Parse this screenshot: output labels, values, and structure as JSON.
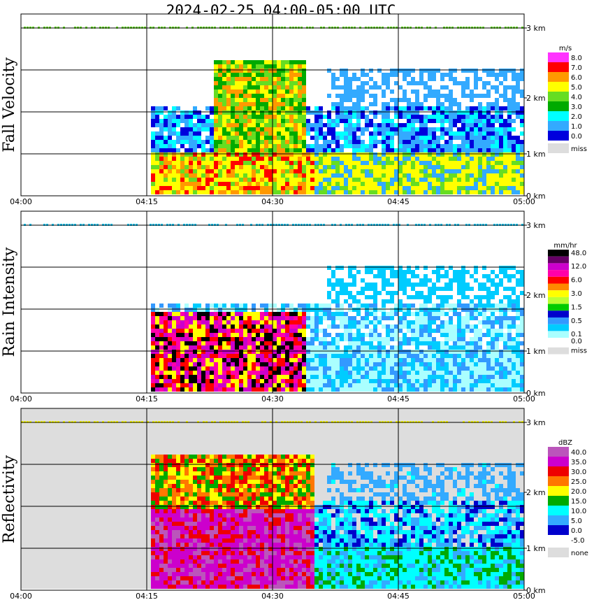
{
  "title": "2024-02-25   04:00-05:00 UTC",
  "chart_data": [
    {
      "type": "heatmap",
      "panel_label": "Fall Velocity",
      "x_ticks": [
        "04:00",
        "04:15",
        "04:30",
        "04:45",
        "05:00"
      ],
      "y_ticks": [
        "0 km",
        "1 km",
        "2 km",
        "3 km"
      ],
      "legend_unit": "m/s",
      "legend": [
        {
          "label": "8.0",
          "color": "#ff33ff"
        },
        {
          "label": "7.0",
          "color": "#ff0000"
        },
        {
          "label": "6.0",
          "color": "#ff9900"
        },
        {
          "label": "5.0",
          "color": "#ffff00"
        },
        {
          "label": "4.0",
          "color": "#66dd22"
        },
        {
          "label": "3.0",
          "color": "#00aa00"
        },
        {
          "label": "2.0",
          "color": "#00ffff"
        },
        {
          "label": "1.0",
          "color": "#33aaff"
        },
        {
          "label": "0.0",
          "color": "#0000dd"
        },
        {
          "label": "miss",
          "color": "#dddddd"
        }
      ]
    },
    {
      "type": "heatmap",
      "panel_label": "Rain Intensity",
      "x_ticks": [
        "04:00",
        "04:15",
        "04:30",
        "04:45",
        "05:00"
      ],
      "y_ticks": [
        "0 km",
        "1 km",
        "2 km",
        "3 km"
      ],
      "legend_unit": "mm/hr",
      "legend": [
        {
          "label": "48.0",
          "color": "#000000"
        },
        {
          "label": "",
          "color": "#660066"
        },
        {
          "label": "12.0",
          "color": "#cc00cc"
        },
        {
          "label": "",
          "color": "#ff00aa"
        },
        {
          "label": "6.0",
          "color": "#ff0000"
        },
        {
          "label": "",
          "color": "#ff8800"
        },
        {
          "label": "3.0",
          "color": "#ffff00"
        },
        {
          "label": "",
          "color": "#bbff33"
        },
        {
          "label": "1.5",
          "color": "#00cc00"
        },
        {
          "label": "",
          "color": "#0000cc"
        },
        {
          "label": "0.5",
          "color": "#3399ff"
        },
        {
          "label": "",
          "color": "#00ccff"
        },
        {
          "label": "0.1",
          "color": "#aaffff"
        },
        {
          "label": "0.0",
          "color": "#ffffff"
        },
        {
          "label": "miss",
          "color": "#dddddd"
        }
      ]
    },
    {
      "type": "heatmap",
      "panel_label": "Reflectivity",
      "x_ticks": [
        "04:00",
        "04:15",
        "04:30",
        "04:45",
        "05:00"
      ],
      "y_ticks": [
        "0 km",
        "1 km",
        "2 km",
        "3 km"
      ],
      "legend_unit": "dBZ",
      "legend": [
        {
          "label": "40.0",
          "color": "#bb55bb"
        },
        {
          "label": "35.0",
          "color": "#cc00cc"
        },
        {
          "label": "30.0",
          "color": "#ee0000"
        },
        {
          "label": "25.0",
          "color": "#ff7700"
        },
        {
          "label": "20.0",
          "color": "#ffff00"
        },
        {
          "label": "15.0",
          "color": "#00aa00"
        },
        {
          "label": "10.0",
          "color": "#00ffff"
        },
        {
          "label": "5.0",
          "color": "#33aaff"
        },
        {
          "label": "0.0",
          "color": "#0000cc"
        },
        {
          "label": "-5.0",
          "color": "#ffffff"
        },
        {
          "label": "none",
          "color": "#dddddd"
        }
      ]
    }
  ]
}
